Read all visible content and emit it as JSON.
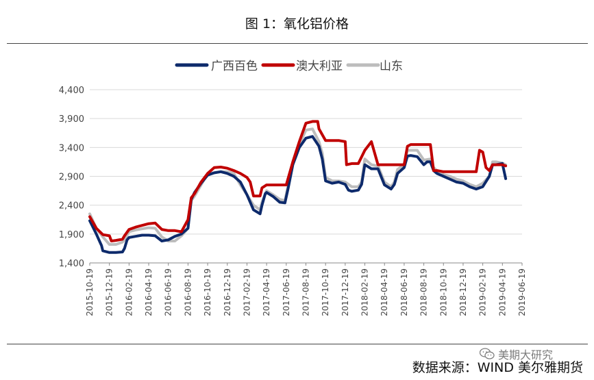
{
  "title": "图 1：氧化铝价格",
  "footer": "数据来源：WIND 美尔雅期货",
  "watermark": "美期大研究",
  "chart_data": {
    "type": "line",
    "title": "图 1：氧化铝价格",
    "xlabel": "",
    "ylabel": "",
    "ylim": [
      1400,
      4400
    ],
    "yticks": [
      "1,400",
      "1,900",
      "2,400",
      "2,900",
      "3,400",
      "3,900",
      "4,400"
    ],
    "xticks": [
      "2015-10-19",
      "2015-12-19",
      "2016-02-19",
      "2016-04-19",
      "2016-06-19",
      "2016-08-19",
      "2016-10-19",
      "2016-12-19",
      "2017-02-19",
      "2017-04-19",
      "2017-06-19",
      "2017-08-19",
      "2017-10-19",
      "2017-12-19",
      "2018-02-19",
      "2018-04-19",
      "2018-06-19",
      "2018-08-19",
      "2018-10-19",
      "2018-12-19",
      "2019-02-19",
      "2019-04-19",
      "2019-06-19"
    ],
    "grid": true,
    "legend": "top-center",
    "series": [
      {
        "name": "广西百色",
        "color": "#0d2a6b",
        "points": [
          [
            0,
            2130
          ],
          [
            1,
            1900
          ],
          [
            1.4,
            1800
          ],
          [
            1.8,
            1700
          ],
          [
            2,
            1610
          ],
          [
            3,
            1580
          ],
          [
            4,
            1580
          ],
          [
            5,
            1590
          ],
          [
            5.3,
            1650
          ],
          [
            5.7,
            1800
          ],
          [
            6,
            1840
          ],
          [
            7,
            1860
          ],
          [
            8,
            1880
          ],
          [
            9,
            1880
          ],
          [
            10,
            1870
          ],
          [
            11,
            1780
          ],
          [
            12,
            1800
          ],
          [
            13,
            1860
          ],
          [
            14,
            1900
          ],
          [
            15,
            2000
          ],
          [
            15.5,
            2500
          ],
          [
            16,
            2620
          ],
          [
            17,
            2780
          ],
          [
            18,
            2920
          ],
          [
            19,
            2960
          ],
          [
            20,
            2980
          ],
          [
            21,
            2950
          ],
          [
            22,
            2900
          ],
          [
            23,
            2800
          ],
          [
            24,
            2580
          ],
          [
            25,
            2320
          ],
          [
            26,
            2250
          ],
          [
            26.3,
            2400
          ],
          [
            26.8,
            2600
          ],
          [
            27,
            2620
          ],
          [
            28,
            2550
          ],
          [
            29,
            2450
          ],
          [
            29.8,
            2440
          ],
          [
            30.3,
            2700
          ],
          [
            31,
            3100
          ],
          [
            32,
            3400
          ],
          [
            33,
            3560
          ],
          [
            34,
            3590
          ],
          [
            35,
            3420
          ],
          [
            35.5,
            3200
          ],
          [
            36,
            2820
          ],
          [
            37,
            2780
          ],
          [
            38,
            2800
          ],
          [
            39,
            2760
          ],
          [
            39.5,
            2660
          ],
          [
            40,
            2640
          ],
          [
            41,
            2660
          ],
          [
            41.5,
            2760
          ],
          [
            42,
            3100
          ],
          [
            43,
            3030
          ],
          [
            44,
            3030
          ],
          [
            45,
            2750
          ],
          [
            46,
            2680
          ],
          [
            46.5,
            2760
          ],
          [
            47,
            2950
          ],
          [
            48,
            3050
          ],
          [
            48.5,
            3250
          ],
          [
            49,
            3260
          ],
          [
            50,
            3240
          ],
          [
            51,
            3100
          ],
          [
            51.5,
            3150
          ],
          [
            52,
            3150
          ],
          [
            52.5,
            3000
          ],
          [
            53,
            2950
          ],
          [
            54,
            2900
          ],
          [
            55,
            2850
          ],
          [
            56,
            2800
          ],
          [
            57,
            2780
          ],
          [
            58,
            2720
          ],
          [
            59,
            2680
          ],
          [
            60,
            2720
          ],
          [
            61,
            2900
          ],
          [
            61.5,
            3100
          ],
          [
            62,
            3100
          ],
          [
            63,
            3120
          ],
          [
            63.5,
            2860
          ]
        ]
      },
      {
        "name": "澳大利亚",
        "color": "#c00000",
        "points": [
          [
            0,
            2200
          ],
          [
            1,
            2000
          ],
          [
            2,
            1890
          ],
          [
            3,
            1870
          ],
          [
            3.3,
            1780
          ],
          [
            4,
            1790
          ],
          [
            5,
            1810
          ],
          [
            5.3,
            1870
          ],
          [
            6,
            1980
          ],
          [
            7,
            2020
          ],
          [
            8,
            2050
          ],
          [
            9,
            2080
          ],
          [
            10,
            2090
          ],
          [
            11,
            1980
          ],
          [
            12,
            1960
          ],
          [
            13,
            1960
          ],
          [
            14,
            1940
          ],
          [
            15,
            2150
          ],
          [
            15.5,
            2530
          ],
          [
            16,
            2600
          ],
          [
            17,
            2800
          ],
          [
            18,
            2950
          ],
          [
            19,
            3050
          ],
          [
            20,
            3060
          ],
          [
            21,
            3040
          ],
          [
            22,
            3000
          ],
          [
            23,
            2950
          ],
          [
            24,
            2880
          ],
          [
            24.5,
            2800
          ],
          [
            25,
            2560
          ],
          [
            26,
            2560
          ],
          [
            26.3,
            2700
          ],
          [
            27,
            2750
          ],
          [
            28,
            2750
          ],
          [
            29,
            2750
          ],
          [
            30,
            2750
          ],
          [
            31,
            3150
          ],
          [
            32,
            3500
          ],
          [
            33,
            3820
          ],
          [
            34,
            3850
          ],
          [
            34.8,
            3850
          ],
          [
            35,
            3720
          ],
          [
            36,
            3520
          ],
          [
            37,
            3520
          ],
          [
            38,
            3520
          ],
          [
            39,
            3500
          ],
          [
            39.2,
            3100
          ],
          [
            40,
            3120
          ],
          [
            41,
            3120
          ],
          [
            42,
            3350
          ],
          [
            43,
            3500
          ],
          [
            44,
            3100
          ],
          [
            45,
            3100
          ],
          [
            46,
            3100
          ],
          [
            47,
            3100
          ],
          [
            48,
            3100
          ],
          [
            48.5,
            3420
          ],
          [
            49,
            3450
          ],
          [
            50,
            3450
          ],
          [
            51,
            3450
          ],
          [
            52,
            3450
          ],
          [
            52.5,
            3000
          ],
          [
            53,
            3000
          ],
          [
            54,
            2980
          ],
          [
            55,
            2980
          ],
          [
            56,
            2980
          ],
          [
            57,
            2980
          ],
          [
            58,
            2980
          ],
          [
            59,
            2980
          ],
          [
            59.5,
            3350
          ],
          [
            60,
            3320
          ],
          [
            60.5,
            3050
          ],
          [
            61,
            3000
          ],
          [
            61.5,
            3100
          ],
          [
            62,
            3100
          ],
          [
            63,
            3100
          ],
          [
            63.5,
            3080
          ]
        ]
      },
      {
        "name": "山东",
        "color": "#bdbdbd",
        "points": [
          [
            0,
            2250
          ],
          [
            1,
            2000
          ],
          [
            2,
            1850
          ],
          [
            3,
            1720
          ],
          [
            4,
            1720
          ],
          [
            5,
            1760
          ],
          [
            5.3,
            1800
          ],
          [
            6,
            1940
          ],
          [
            7,
            1970
          ],
          [
            8,
            1990
          ],
          [
            9,
            2010
          ],
          [
            10,
            2000
          ],
          [
            11,
            1850
          ],
          [
            12,
            1780
          ],
          [
            13,
            1780
          ],
          [
            14,
            1870
          ],
          [
            15,
            2000
          ],
          [
            15.5,
            2480
          ],
          [
            16,
            2560
          ],
          [
            17,
            2750
          ],
          [
            18,
            2950
          ],
          [
            19,
            2960
          ],
          [
            20,
            2980
          ],
          [
            21,
            2980
          ],
          [
            22,
            2950
          ],
          [
            23,
            2750
          ],
          [
            24,
            2580
          ],
          [
            25,
            2400
          ],
          [
            26,
            2320
          ],
          [
            26.3,
            2450
          ],
          [
            27,
            2650
          ],
          [
            28,
            2580
          ],
          [
            29,
            2500
          ],
          [
            29.8,
            2480
          ],
          [
            30.3,
            2750
          ],
          [
            31,
            3150
          ],
          [
            32,
            3450
          ],
          [
            33,
            3700
          ],
          [
            34,
            3720
          ],
          [
            35,
            3500
          ],
          [
            35.5,
            3300
          ],
          [
            36,
            2880
          ],
          [
            37,
            2820
          ],
          [
            38,
            2820
          ],
          [
            39,
            2800
          ],
          [
            40,
            2720
          ],
          [
            41,
            2720
          ],
          [
            41.5,
            2800
          ],
          [
            42,
            3200
          ],
          [
            43,
            3100
          ],
          [
            44,
            3080
          ],
          [
            45,
            2800
          ],
          [
            46,
            2720
          ],
          [
            46.5,
            2800
          ],
          [
            47,
            3020
          ],
          [
            48,
            3100
          ],
          [
            48.5,
            3350
          ],
          [
            49,
            3350
          ],
          [
            50,
            3350
          ],
          [
            51,
            3180
          ],
          [
            52,
            3200
          ],
          [
            52.5,
            3050
          ],
          [
            53,
            3000
          ],
          [
            54,
            2930
          ],
          [
            55,
            2900
          ],
          [
            56,
            2850
          ],
          [
            57,
            2820
          ],
          [
            58,
            2760
          ],
          [
            59,
            2720
          ],
          [
            60,
            2780
          ],
          [
            61,
            2900
          ],
          [
            61.5,
            3150
          ],
          [
            62,
            3150
          ],
          [
            63,
            3130
          ],
          [
            63.5,
            3100
          ]
        ]
      }
    ]
  }
}
